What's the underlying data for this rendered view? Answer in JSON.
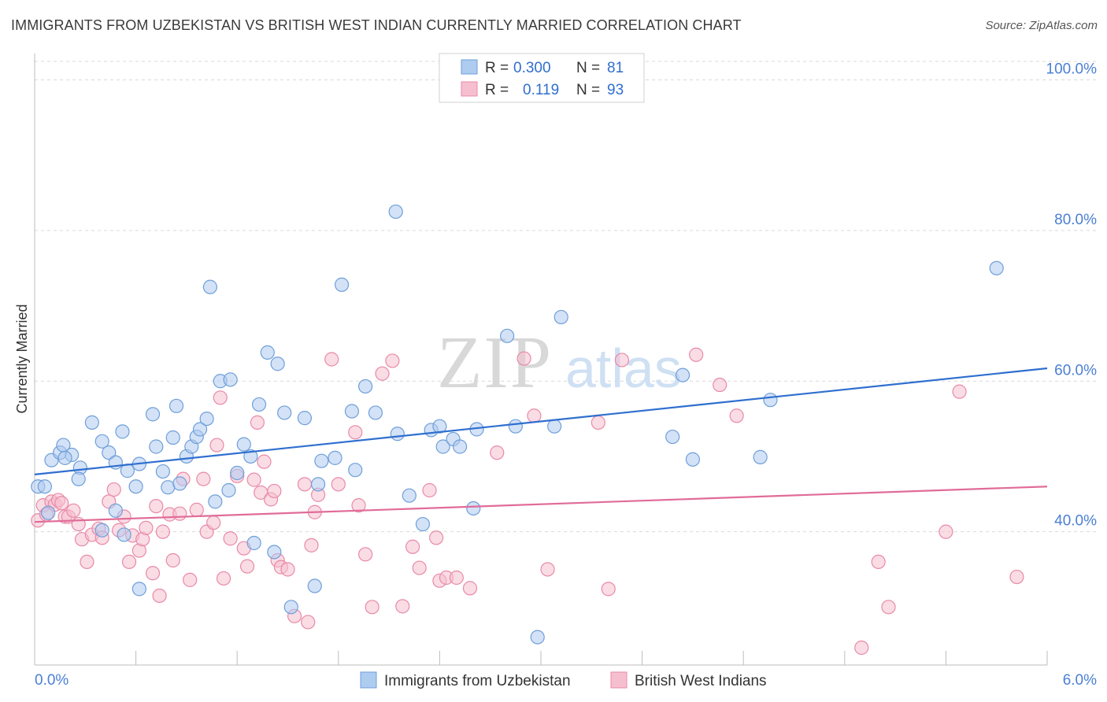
{
  "title": "IMMIGRANTS FROM UZBEKISTAN VS BRITISH WEST INDIAN CURRENTLY MARRIED CORRELATION CHART",
  "source": "Source: ZipAtlas.com",
  "watermark": {
    "zip": "ZIP",
    "atlas": "atlas"
  },
  "colors": {
    "blue_fill": "#aecbf0",
    "blue_stroke": "#6f9fd8",
    "blue_line": "#2f6fcf",
    "pink_fill": "#f6bfd0",
    "pink_stroke": "#e88aa8",
    "pink_line": "#e06c98",
    "axis_text": "#4a7fd4",
    "grid": "#d9d9d9"
  },
  "legend_top": [
    {
      "r_label": "R =",
      "r_value": "0.300",
      "n_label": "N =",
      "n_value": "81",
      "color": "blue"
    },
    {
      "r_label": "R =",
      "r_value": "0.119",
      "n_label": "N =",
      "n_value": "93",
      "color": "pink"
    }
  ],
  "legend_bottom": [
    {
      "label": "Immigrants from Uzbekistan",
      "color": "blue"
    },
    {
      "label": "British West Indians",
      "color": "pink"
    }
  ],
  "chart_data": {
    "type": "scatter",
    "xlabel": "",
    "ylabel": "Currently Married",
    "xlim": [
      0,
      6.0
    ],
    "ylim": [
      22.3,
      103.5
    ],
    "x_tick_labels": [
      {
        "x": 0,
        "label": "0.0%"
      },
      {
        "x": 6.0,
        "label": "6.0%"
      }
    ],
    "y_tick_labels": [
      {
        "y": 40,
        "label": "40.0%"
      },
      {
        "y": 60,
        "label": "60.0%"
      },
      {
        "y": 80,
        "label": "80.0%"
      },
      {
        "y": 100,
        "label": "100.0%"
      }
    ],
    "grid": true,
    "series": [
      {
        "name": "Immigrants from Uzbekistan",
        "color": "blue",
        "trend": {
          "x0": 0,
          "y0": 47.6,
          "x1": 6.0,
          "y1": 61.7
        },
        "points": [
          [
            0.02,
            46.0
          ],
          [
            0.06,
            46.0
          ],
          [
            0.08,
            42.5
          ],
          [
            0.1,
            49.5
          ],
          [
            0.15,
            50.5
          ],
          [
            0.17,
            51.5
          ],
          [
            0.22,
            50.2
          ],
          [
            0.18,
            49.8
          ],
          [
            0.27,
            48.5
          ],
          [
            0.26,
            47.0
          ],
          [
            0.34,
            54.5
          ],
          [
            0.4,
            52.0
          ],
          [
            0.44,
            50.5
          ],
          [
            0.48,
            49.2
          ],
          [
            0.52,
            53.3
          ],
          [
            0.55,
            48.1
          ],
          [
            0.6,
            46.0
          ],
          [
            0.62,
            49.0
          ],
          [
            0.7,
            55.6
          ],
          [
            0.72,
            51.3
          ],
          [
            0.76,
            48.0
          ],
          [
            0.79,
            45.9
          ],
          [
            0.82,
            52.5
          ],
          [
            0.84,
            56.7
          ],
          [
            0.86,
            46.4
          ],
          [
            0.9,
            50.0
          ],
          [
            0.93,
            51.3
          ],
          [
            0.96,
            52.6
          ],
          [
            0.98,
            53.6
          ],
          [
            1.02,
            55.0
          ],
          [
            1.04,
            72.5
          ],
          [
            1.07,
            44.0
          ],
          [
            1.1,
            60.0
          ],
          [
            1.15,
            45.5
          ],
          [
            1.16,
            60.2
          ],
          [
            1.2,
            47.8
          ],
          [
            1.24,
            51.6
          ],
          [
            1.28,
            50.0
          ],
          [
            1.3,
            38.5
          ],
          [
            1.33,
            56.9
          ],
          [
            1.38,
            63.8
          ],
          [
            1.42,
            37.3
          ],
          [
            1.44,
            62.3
          ],
          [
            1.48,
            55.8
          ],
          [
            1.52,
            30.0
          ],
          [
            1.6,
            55.1
          ],
          [
            1.66,
            32.8
          ],
          [
            1.68,
            46.3
          ],
          [
            1.7,
            49.4
          ],
          [
            1.78,
            49.8
          ],
          [
            1.82,
            72.8
          ],
          [
            1.88,
            56.0
          ],
          [
            1.9,
            48.2
          ],
          [
            1.96,
            59.3
          ],
          [
            2.02,
            55.8
          ],
          [
            2.14,
            82.5
          ],
          [
            2.15,
            53.0
          ],
          [
            2.22,
            44.8
          ],
          [
            2.3,
            41.0
          ],
          [
            2.35,
            53.5
          ],
          [
            2.4,
            54.0
          ],
          [
            2.42,
            51.3
          ],
          [
            2.48,
            52.3
          ],
          [
            2.52,
            51.3
          ],
          [
            2.6,
            43.1
          ],
          [
            2.62,
            53.6
          ],
          [
            2.8,
            66.0
          ],
          [
            2.85,
            54.0
          ],
          [
            2.98,
            26.0
          ],
          [
            3.08,
            54.0
          ],
          [
            3.12,
            68.5
          ],
          [
            3.78,
            52.6
          ],
          [
            3.84,
            60.8
          ],
          [
            3.9,
            49.6
          ],
          [
            4.3,
            49.9
          ],
          [
            4.36,
            57.5
          ],
          [
            5.7,
            75.0
          ],
          [
            0.53,
            39.6
          ],
          [
            0.62,
            32.4
          ],
          [
            0.4,
            40.2
          ],
          [
            0.48,
            42.8
          ]
        ]
      },
      {
        "name": "British West Indians",
        "color": "pink",
        "trend": {
          "x0": 0,
          "y0": 41.3,
          "x1": 6.0,
          "y1": 46.0
        },
        "points": [
          [
            0.02,
            41.5
          ],
          [
            0.05,
            43.5
          ],
          [
            0.07,
            42.3
          ],
          [
            0.1,
            44.0
          ],
          [
            0.12,
            43.6
          ],
          [
            0.14,
            44.2
          ],
          [
            0.18,
            42.0
          ],
          [
            0.2,
            42.0
          ],
          [
            0.23,
            42.8
          ],
          [
            0.26,
            41.0
          ],
          [
            0.28,
            39.0
          ],
          [
            0.31,
            36.0
          ],
          [
            0.34,
            39.6
          ],
          [
            0.38,
            40.4
          ],
          [
            0.4,
            39.2
          ],
          [
            0.44,
            44.0
          ],
          [
            0.47,
            45.6
          ],
          [
            0.5,
            40.2
          ],
          [
            0.53,
            42.0
          ],
          [
            0.56,
            36.0
          ],
          [
            0.58,
            39.5
          ],
          [
            0.62,
            37.5
          ],
          [
            0.64,
            39.0
          ],
          [
            0.66,
            40.5
          ],
          [
            0.7,
            34.5
          ],
          [
            0.72,
            43.4
          ],
          [
            0.74,
            31.5
          ],
          [
            0.76,
            40.0
          ],
          [
            0.8,
            42.3
          ],
          [
            0.82,
            36.2
          ],
          [
            0.86,
            42.4
          ],
          [
            0.88,
            47.0
          ],
          [
            0.92,
            33.6
          ],
          [
            0.96,
            42.9
          ],
          [
            1.0,
            47.0
          ],
          [
            1.02,
            40.0
          ],
          [
            1.06,
            41.2
          ],
          [
            1.08,
            51.5
          ],
          [
            1.1,
            57.8
          ],
          [
            1.12,
            33.8
          ],
          [
            1.16,
            39.1
          ],
          [
            1.2,
            47.4
          ],
          [
            1.24,
            37.8
          ],
          [
            1.26,
            35.4
          ],
          [
            1.3,
            46.9
          ],
          [
            1.32,
            54.5
          ],
          [
            1.34,
            45.2
          ],
          [
            1.36,
            49.3
          ],
          [
            1.4,
            44.3
          ],
          [
            1.42,
            45.4
          ],
          [
            1.44,
            36.2
          ],
          [
            1.46,
            35.3
          ],
          [
            1.5,
            35.0
          ],
          [
            1.54,
            28.8
          ],
          [
            1.6,
            46.3
          ],
          [
            1.62,
            28.0
          ],
          [
            1.64,
            38.2
          ],
          [
            1.66,
            42.6
          ],
          [
            1.68,
            44.9
          ],
          [
            1.76,
            62.9
          ],
          [
            1.8,
            46.3
          ],
          [
            1.9,
            53.2
          ],
          [
            1.92,
            43.5
          ],
          [
            1.96,
            37.0
          ],
          [
            2.0,
            30.0
          ],
          [
            2.06,
            61.0
          ],
          [
            2.12,
            62.7
          ],
          [
            2.18,
            30.1
          ],
          [
            2.24,
            38.0
          ],
          [
            2.28,
            35.2
          ],
          [
            2.34,
            45.5
          ],
          [
            2.38,
            39.2
          ],
          [
            2.4,
            33.5
          ],
          [
            2.44,
            33.9
          ],
          [
            2.5,
            33.9
          ],
          [
            2.58,
            32.5
          ],
          [
            2.74,
            50.5
          ],
          [
            2.9,
            63.0
          ],
          [
            2.96,
            55.4
          ],
          [
            3.04,
            35.0
          ],
          [
            3.34,
            54.5
          ],
          [
            3.4,
            32.4
          ],
          [
            3.48,
            62.8
          ],
          [
            3.92,
            63.5
          ],
          [
            4.06,
            59.5
          ],
          [
            4.16,
            55.4
          ],
          [
            4.9,
            24.6
          ],
          [
            5.0,
            36.0
          ],
          [
            5.06,
            30.0
          ],
          [
            5.4,
            40.0
          ],
          [
            5.48,
            58.6
          ],
          [
            5.82,
            34.0
          ],
          [
            0.16,
            43.8
          ]
        ]
      }
    ]
  }
}
